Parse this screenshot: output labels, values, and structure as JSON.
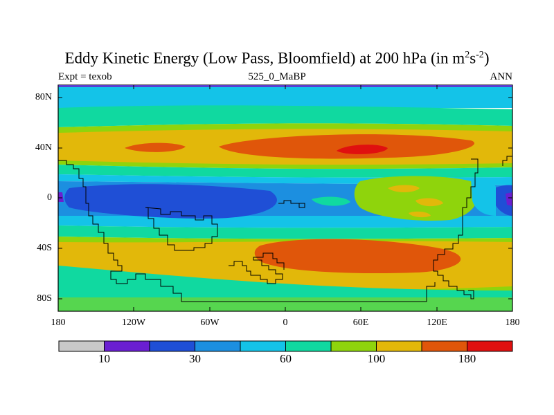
{
  "title": {
    "main": "Eddy Kinetic Energy (Low Pass, Bloomfield) at 200 hPa (in m",
    "sup1": "2",
    "mid": "s",
    "sup2": "-2",
    "end": ")"
  },
  "subtitle": {
    "left": "Expt = texob",
    "center": "525_0_MaBP",
    "right": "ANN"
  },
  "axes": {
    "lat_labels": [
      "80N",
      "40N",
      "0",
      "40S",
      "80S"
    ],
    "lon_labels": [
      "180",
      "120W",
      "60W",
      "0",
      "60E",
      "120E",
      "180"
    ]
  },
  "colorbar": {
    "colors": [
      "#c8c8c8",
      "#6a1fd1",
      "#1f4fd6",
      "#1c8fe0",
      "#14c3e8",
      "#10d9a0",
      "#8fd40c",
      "#e2b80a",
      "#e0560a",
      "#e0100f"
    ],
    "labels": [
      "10",
      "30",
      "60",
      "100",
      "180"
    ]
  },
  "palette": {
    "level1": "#6a1fd1",
    "level2": "#1f4fd6",
    "level3": "#1c8fe0",
    "level4": "#14c3e8",
    "level5": "#10d9a0",
    "level6": "#8fd40c",
    "level7": "#e2b80a",
    "level8": "#e0560a",
    "level9": "#e0100f"
  }
}
